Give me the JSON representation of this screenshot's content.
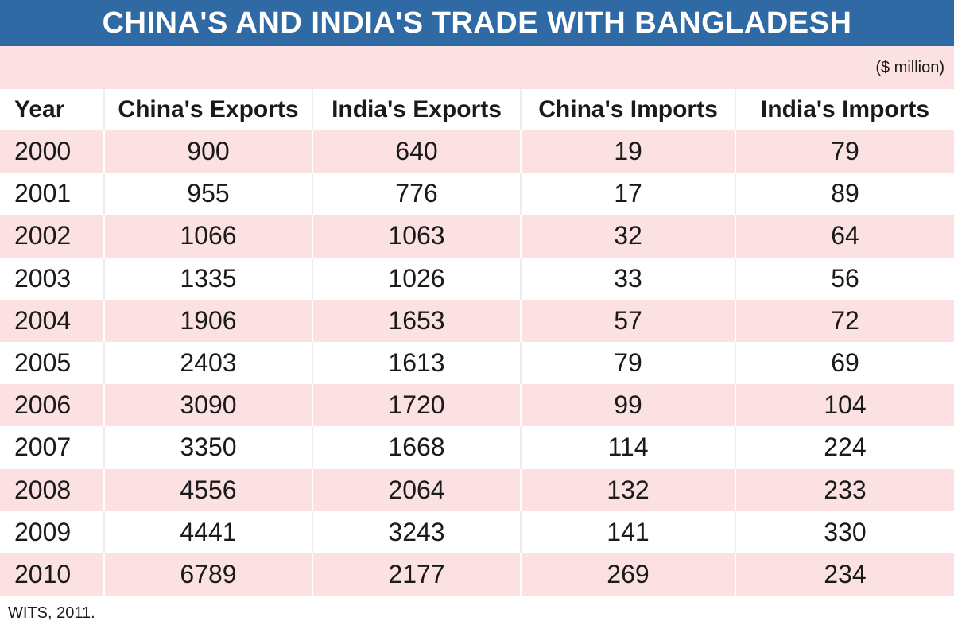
{
  "title": "CHINA'S AND INDIA'S TRADE WITH BANGLADESH",
  "unit": "($ million)",
  "source": "WITS, 2011.",
  "colors": {
    "title_bar": "#2f6aa5",
    "title_text": "#ffffff",
    "stripe": "#fbe1e1",
    "background": "#ffffff"
  },
  "chart_data": {
    "type": "table",
    "title": "CHINA'S AND INDIA'S TRADE WITH BANGLADESH",
    "unit": "($ million)",
    "columns": [
      "Year",
      "China's Exports",
      "India's Exports",
      "China's Imports",
      "India's Imports"
    ],
    "rows": [
      [
        "2000",
        "900",
        "640",
        "19",
        "79"
      ],
      [
        "2001",
        "955",
        "776",
        "17",
        "89"
      ],
      [
        "2002",
        "1066",
        "1063",
        "32",
        "64"
      ],
      [
        "2003",
        "1335",
        "1026",
        "33",
        "56"
      ],
      [
        "2004",
        "1906",
        "1653",
        "57",
        "72"
      ],
      [
        "2005",
        "2403",
        "1613",
        "79",
        "69"
      ],
      [
        "2006",
        "3090",
        "1720",
        "99",
        "104"
      ],
      [
        "2007",
        "3350",
        "1668",
        "114",
        "224"
      ],
      [
        "2008",
        "4556",
        "2064",
        "132",
        "233"
      ],
      [
        "2009",
        "4441",
        "3243",
        "141",
        "330"
      ],
      [
        "2010",
        "6789",
        "2177",
        "269",
        "234"
      ]
    ],
    "source": "WITS, 2011."
  }
}
